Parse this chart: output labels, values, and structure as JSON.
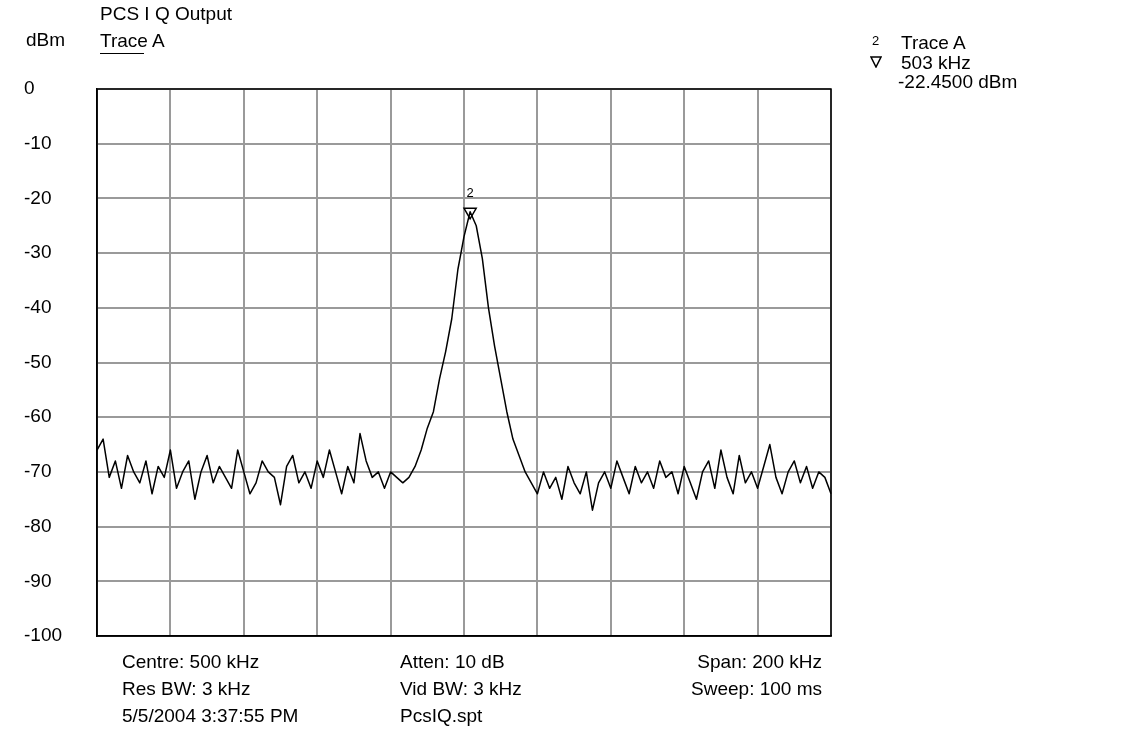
{
  "chart_data": {
    "type": "line",
    "title": "PCS I Q Output",
    "ylabel": "dBm",
    "categories": [
      null,
      null,
      null,
      null,
      null,
      null,
      null,
      null,
      null,
      null,
      null,
      null,
      null,
      null,
      null,
      null,
      null,
      null,
      null,
      null,
      null,
      null,
      null,
      null,
      null,
      null,
      null,
      null,
      null,
      null,
      null,
      null,
      null,
      null,
      null,
      null,
      null,
      null,
      null,
      null,
      null,
      null,
      null,
      null,
      null,
      null,
      null,
      null,
      null,
      null,
      null,
      null,
      null,
      null,
      null,
      null,
      null,
      null,
      null,
      null,
      null,
      null,
      null,
      null,
      null,
      null,
      null,
      null,
      null,
      null,
      null,
      null,
      null,
      null,
      null,
      null,
      null,
      null,
      null,
      null,
      null,
      null,
      null,
      null,
      null,
      null,
      null,
      null,
      null,
      null,
      null,
      null,
      null,
      null,
      null,
      null,
      null,
      null,
      null,
      null,
      null,
      null,
      null,
      null,
      null,
      null,
      null,
      null,
      null,
      null,
      null,
      null,
      null,
      null,
      null,
      null,
      null,
      null,
      null,
      null,
      null
    ],
    "series": [
      {
        "name": "Trace A",
        "color": "#000000",
        "values": [
          -66,
          -64,
          -71,
          -68,
          -73,
          -67,
          -70,
          -72,
          -68,
          -74,
          -69,
          -71,
          -66,
          -73,
          -70,
          -68,
          -75,
          -70,
          -67,
          -72,
          -69,
          -71,
          -73,
          -66,
          -70,
          -74,
          -72,
          -68,
          -70,
          -71,
          -76,
          -69,
          -67,
          -72,
          -70,
          -73,
          -68,
          -71,
          -66,
          -70,
          -74,
          -69,
          -72,
          -63,
          -68,
          -71,
          -70,
          -73,
          -70,
          -71,
          -72,
          -71,
          -69,
          -66,
          -62,
          -59,
          -53,
          -48,
          -42,
          -33,
          -27,
          -22.45,
          -25,
          -31,
          -40,
          -47,
          -53,
          -59,
          -64,
          -67,
          -70,
          -72,
          -74,
          -70,
          -73,
          -71,
          -75,
          -69,
          -72,
          -74,
          -70,
          -77,
          -72,
          -70,
          -73,
          -68,
          -71,
          -74,
          -69,
          -72,
          -70,
          -73,
          -68,
          -71,
          -70,
          -74,
          -69,
          -72,
          -75,
          -70,
          -68,
          -73,
          -66,
          -71,
          -74,
          -67,
          -72,
          -70,
          -73,
          -69,
          -65,
          -71,
          -74,
          -70,
          -68,
          -72,
          -69,
          -73,
          -70,
          -71,
          -74
        ]
      },
      {
        "type": "scatter",
        "marker": "triangle",
        "color": "#000000",
        "values": [
          null,
          null,
          null,
          null,
          null,
          null,
          null,
          null,
          null,
          null,
          null,
          null,
          null,
          null,
          null,
          null,
          null,
          null,
          null,
          null,
          null,
          null,
          null,
          null,
          null,
          null,
          null,
          null,
          null,
          null,
          null,
          null,
          null,
          null,
          null,
          null,
          null,
          null,
          null,
          null,
          null,
          null,
          null,
          null,
          null,
          null,
          null,
          null,
          null,
          null,
          null,
          null,
          null,
          null,
          null,
          null,
          null,
          null,
          null,
          null,
          null,
          -22.45,
          null,
          null,
          null,
          null,
          null,
          null,
          null,
          null,
          null,
          null,
          null,
          null,
          null,
          null,
          null,
          null,
          null,
          null,
          null,
          null,
          null,
          null,
          null,
          null,
          null,
          null,
          null,
          null,
          null,
          null,
          null,
          null,
          null,
          null,
          null,
          null,
          null,
          null,
          null,
          null,
          null,
          null,
          null,
          null,
          null,
          null,
          null,
          null,
          null,
          null,
          null,
          null,
          null,
          null,
          null,
          null,
          null,
          null,
          null
        ]
      }
    ],
    "ylim": [
      -100,
      0
    ],
    "yticks": [
      0,
      -10,
      -20,
      -30,
      -40,
      -50,
      -60,
      -70,
      -80,
      -90,
      -100
    ],
    "grid": true,
    "legend": "top left",
    "annotations": [
      "2",
      "2",
      "Trace A",
      "503 kHz",
      "-22.4500 dBm",
      "Centre: 500 kHz",
      "Atten: 10 dB",
      "Span: 200 kHz",
      "Res BW: 3 kHz",
      "Vid BW: 3 kHz",
      "Sweep: 100 ms",
      "5/5/2004 3:37:55 PM",
      "PcsIQ.spt"
    ]
  }
}
